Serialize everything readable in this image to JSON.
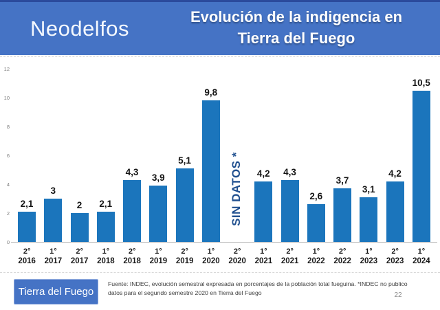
{
  "header": {
    "logo": "Neodelfos",
    "title_line1": "Evolución de la indigencia en",
    "title_line2": "Tierra del Fuego"
  },
  "footer": {
    "region_label": "Tierra del Fuego",
    "source_line1": "Fuente: INDEC, evolución semestral expresada en porcentajes de la población total fueguina. *INDEC no publico",
    "source_line2": "datos para el segundo semestre 2020 en Tierra del Fuego",
    "page_number": "22"
  },
  "colors": {
    "banner_blue": "#4573C5",
    "banner_edge_dark_blue": "#2B4A9C",
    "bar_blue": "#1B75BC",
    "no_data_blue": "#21508F",
    "axis_gray": "#C2C2C2",
    "tick_gray": "#7F7F7F"
  },
  "chart_data": {
    "type": "bar",
    "title": "Evolución de la indigencia en Tierra del Fuego",
    "xlabel": "",
    "ylabel": "",
    "ylim": [
      0,
      12
    ],
    "yticks": [
      0,
      2,
      4,
      6,
      8,
      10,
      12
    ],
    "grid": "off",
    "legend": "none",
    "bar_color": "#1B75BC",
    "periods": [
      "2°",
      "1°",
      "2°",
      "1°",
      "2°",
      "1°",
      "2°",
      "1°",
      "2°",
      "1°",
      "2°",
      "1°",
      "2°",
      "1°",
      "2°",
      "1°"
    ],
    "years": [
      "2016",
      "2017",
      "2017",
      "2018",
      "2018",
      "2019",
      "2019",
      "2020",
      "2020",
      "2021",
      "2021",
      "2022",
      "2022",
      "2023",
      "2023",
      "2024"
    ],
    "values": [
      2.1,
      3,
      2,
      2.1,
      4.3,
      3.9,
      5.1,
      9.8,
      null,
      4.2,
      4.3,
      2.6,
      3.7,
      3.1,
      4.2,
      10.5
    ],
    "value_labels": [
      "2,1",
      "3",
      "2",
      "2,1",
      "4,3",
      "3,9",
      "5,1",
      "9,8",
      "",
      "4,2",
      "4,3",
      "2,6",
      "3,7",
      "3,1",
      "4,2",
      "10,5"
    ],
    "no_data_index": 8,
    "no_data_label": "SIN DATOS *",
    "note": "Valores en porcentaje de la población total fueguina, por semestre"
  }
}
